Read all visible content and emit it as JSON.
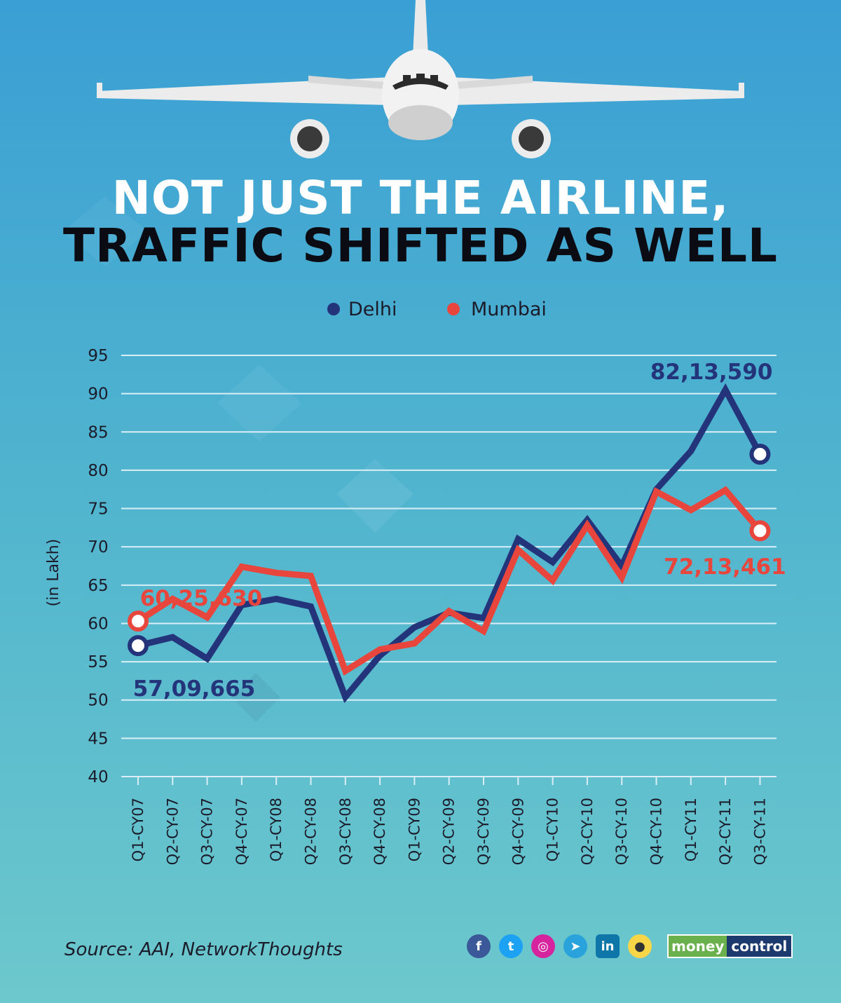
{
  "title_line1": "NOT JUST THE AIRLINE,",
  "title_line2": "TRAFFIC SHIFTED AS WELL",
  "source": "Source: AAI, NetworkThoughts",
  "brand": {
    "part1": "money",
    "part2": "control"
  },
  "social_icons": [
    "facebook-icon",
    "twitter-icon",
    "instagram-icon",
    "telegram-icon",
    "linkedin-icon",
    "koo-icon"
  ],
  "colors": {
    "delhi": "#24347a",
    "mumbai": "#e8453c",
    "grid": "#d9eef6"
  },
  "chart_data": {
    "type": "line",
    "title": "NOT JUST THE AIRLINE, TRAFFIC SHIFTED AS WELL",
    "xlabel": "",
    "ylabel": "(in Lakh)",
    "ylim": [
      40,
      95
    ],
    "yticks": [
      40,
      45,
      50,
      55,
      60,
      65,
      70,
      75,
      80,
      85,
      90,
      95
    ],
    "legend_position": "top-center",
    "grid": true,
    "categories": [
      "Q1-CY07",
      "Q2-CY-07",
      "Q3-CY-07",
      "Q4-CY-07",
      "Q1-CY08",
      "Q2-CY-08",
      "Q3-CY-08",
      "Q4-CY-08",
      "Q1-CY09",
      "Q2-CY-09",
      "Q3-CY-09",
      "Q4-CY-09",
      "Q1-CY10",
      "Q2-CY-10",
      "Q3-CY-10",
      "Q4-CY-10",
      "Q1-CY11",
      "Q2-CY-11",
      "Q3-CY-11"
    ],
    "series": [
      {
        "name": "Delhi",
        "values": [
          57.1,
          58.2,
          55.4,
          62.4,
          63.2,
          62.2,
          50.4,
          55.8,
          59.5,
          61.4,
          60.7,
          71.0,
          68.0,
          73.5,
          67.5,
          77.5,
          82.5,
          90.5,
          82.1
        ]
      },
      {
        "name": "Mumbai",
        "values": [
          60.3,
          63.2,
          60.8,
          67.4,
          66.6,
          66.2,
          53.8,
          56.6,
          57.4,
          61.6,
          59.0,
          69.6,
          65.6,
          72.8,
          66.0,
          77.2,
          74.8,
          77.4,
          72.1
        ]
      }
    ],
    "annotations": [
      {
        "text": "60,25,630",
        "series": "Mumbai",
        "index": 0
      },
      {
        "text": "57,09,665",
        "series": "Delhi",
        "index": 0
      },
      {
        "text": "82,13,590",
        "series": "Delhi",
        "index": 18
      },
      {
        "text": "72,13,461",
        "series": "Mumbai",
        "index": 18
      }
    ]
  }
}
